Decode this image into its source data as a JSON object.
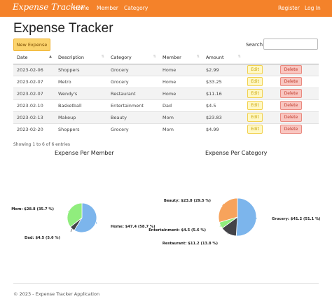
{
  "navbar": {
    "brand": "Expense Tracker",
    "links": [
      "Home",
      "Member",
      "Category"
    ],
    "right_links": [
      "Register",
      "Log In"
    ],
    "color": "#f4822a"
  },
  "page_title": "Expense Tracker",
  "toolbar": {
    "new_label": "New Expense",
    "search_label": "Search:",
    "search_value": ""
  },
  "table": {
    "headers": [
      "Date",
      "Description",
      "Category",
      "Member",
      "Amount"
    ],
    "rows": [
      [
        "2023-02-06",
        "Shoppers",
        "Grocery",
        "Home",
        "$2.99"
      ],
      [
        "2023-02-07",
        "Metro",
        "Grocery",
        "Home",
        "$33.25"
      ],
      [
        "2023-02-07",
        "Wendy's",
        "Restaurant",
        "Home",
        "$11.16"
      ],
      [
        "2023-02-10",
        "Basketball",
        "Entertainment",
        "Dad",
        "$4.5"
      ],
      [
        "2023-02-13",
        "Makeup",
        "Beauty",
        "Mom",
        "$23.83"
      ],
      [
        "2023-02-20",
        "Shoppers",
        "Grocery",
        "Mom",
        "$4.99"
      ]
    ],
    "edit_label": "Edit",
    "delete_label": "Delete"
  },
  "showing_text": "Showing 1 to 6 of 6 entries",
  "footer": "© 2023 - Expense Tracker Application",
  "chart_data": [
    {
      "type": "pie",
      "title": "Expense Per Member",
      "slices": [
        {
          "label": "Home: $47.4 (58.7 %)",
          "value": 47.4,
          "color": "#7cb5ec"
        },
        {
          "label": "Dad: $4.5 (5.6 %)",
          "value": 4.5,
          "color": "#434348"
        },
        {
          "label": "Mom: $28.8 (35.7 %)",
          "value": 28.8,
          "color": "#90ed7d"
        }
      ]
    },
    {
      "type": "pie",
      "title": "Expense Per Category",
      "slices": [
        {
          "label": "Grocery: $41.2 (51.1 %)",
          "value": 41.2,
          "color": "#7cb5ec"
        },
        {
          "label": "Restaurant: $11.2 (13.8 %)",
          "value": 11.2,
          "color": "#434348"
        },
        {
          "label": "Entertainment: $4.5 (5.6 %)",
          "value": 4.5,
          "color": "#90ed7d"
        },
        {
          "label": "Beauty: $23.8 (29.5 %)",
          "value": 23.8,
          "color": "#f7a35c"
        }
      ]
    }
  ]
}
